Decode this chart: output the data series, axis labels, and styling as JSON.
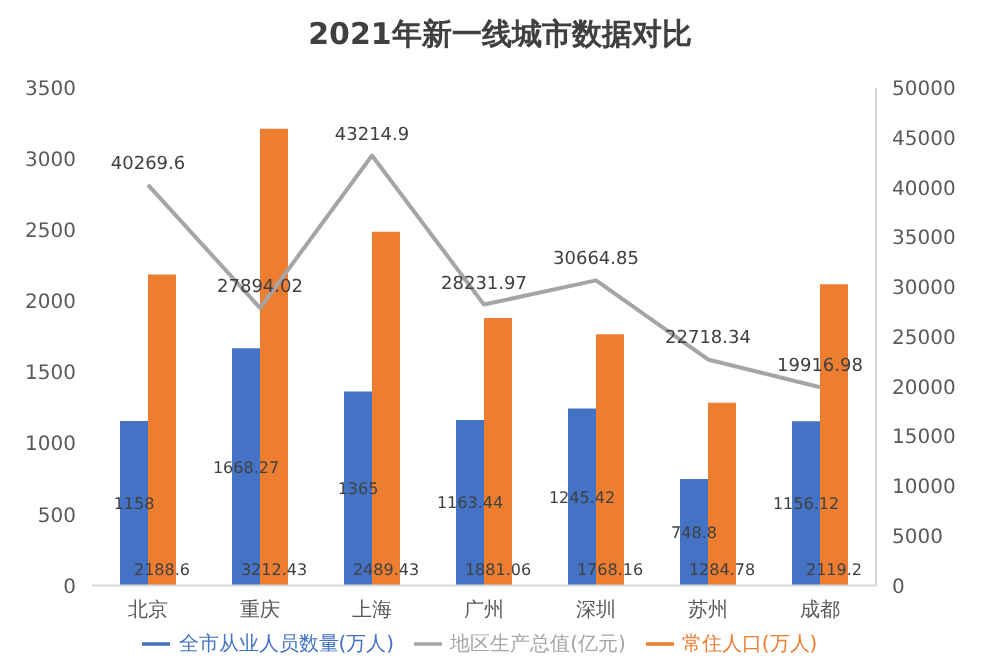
{
  "chart_data": {
    "type": "bar",
    "title": "2021年新一线城市数据对比",
    "categories": [
      "北京",
      "重庆",
      "上海",
      "广州",
      "深圳",
      "苏州",
      "成都"
    ],
    "series": [
      {
        "name": "全市从业人员数量(万人)",
        "color": "#4472c4",
        "values": [
          1158,
          1668.27,
          1365,
          1163.44,
          1245.42,
          748.8,
          1156.12
        ]
      },
      {
        "name": "常住人口(万人)",
        "color": "#ed7d31",
        "values": [
          2188.6,
          3212.43,
          2489.43,
          1881.06,
          1768.16,
          1284.78,
          2119.2
        ]
      },
      {
        "name": "地区生产总值(亿元)",
        "type": "line",
        "axis": "y2",
        "color": "#a5a5a5",
        "values": [
          40269.6,
          27894.02,
          43214.9,
          28231.97,
          30664.85,
          22718.34,
          19916.98
        ]
      }
    ],
    "ylim": [
      0,
      3500
    ],
    "yticks": [
      0,
      500,
      1000,
      1500,
      2000,
      2500,
      3000,
      3500
    ],
    "y2lim": [
      0,
      50000
    ],
    "y2ticks": [
      0,
      5000,
      10000,
      15000,
      20000,
      25000,
      30000,
      35000,
      40000,
      45000,
      50000
    ],
    "data_labels": true,
    "legend": "bottom",
    "grid": false,
    "marker": "none"
  }
}
